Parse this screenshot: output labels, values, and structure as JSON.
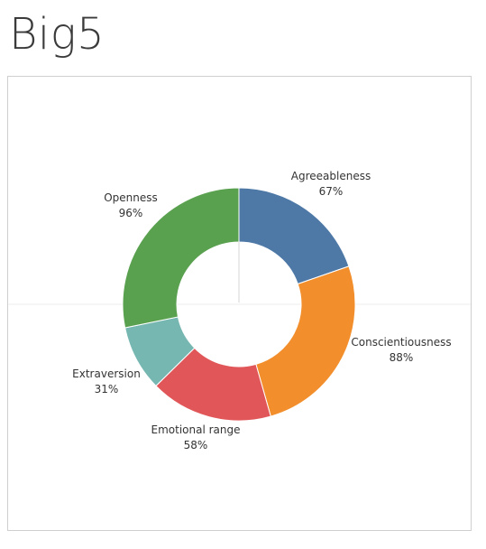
{
  "page": {
    "title": "Big5"
  },
  "chart_data": {
    "type": "pie",
    "donut": true,
    "categories": [
      "Agreeableness",
      "Conscientiousness",
      "Emotional range",
      "Extraversion",
      "Openness"
    ],
    "values": [
      67,
      88,
      58,
      31,
      96
    ],
    "value_labels": [
      "67%",
      "88%",
      "58%",
      "31%",
      "96%"
    ],
    "colors": [
      "#4e79a7",
      "#f28e2b",
      "#e15759",
      "#76b7b2",
      "#59a14f"
    ],
    "title": "",
    "legend": "none"
  }
}
